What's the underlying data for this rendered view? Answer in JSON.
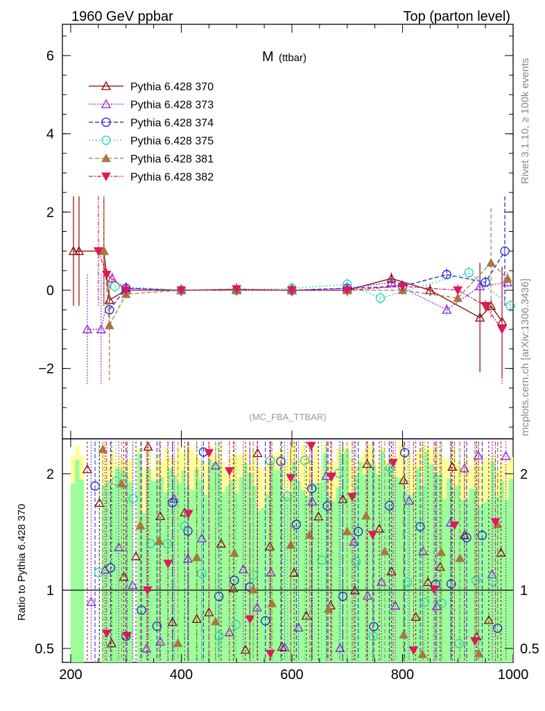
{
  "header": {
    "left": "1960 GeV ppbar",
    "right": "Top (parton level)"
  },
  "side_text": {
    "rivet": "Rivet 3.1.10, ≥ 100k events",
    "mcplots": "mcplots.cern.ch [arXiv:1306.3436]"
  },
  "chart_data": [
    {
      "type": "line",
      "title": "M",
      "title_sub": "(ttbar)",
      "analysis_label": "(MC_FBA_TTBAR)",
      "xlim": [
        185,
        1000
      ],
      "ylim": [
        -3.8,
        6.8
      ],
      "yticks": [
        6,
        4,
        2,
        0,
        -2
      ],
      "ytick_labels": [
        "6",
        "4",
        "2",
        "0",
        "−2"
      ],
      "legend_position": "top-left",
      "series": [
        {
          "name": "Pythia 6.428 370",
          "color": "#8b0000",
          "marker": "triangle-open",
          "dash": "",
          "x": [
            205,
            215,
            260,
            270,
            300,
            400,
            500,
            600,
            700,
            780,
            850,
            940,
            960,
            980
          ],
          "y": [
            1.0,
            1.0,
            1.0,
            -0.25,
            0.0,
            0.0,
            0.02,
            0.0,
            0.0,
            0.3,
            0.0,
            -0.7,
            -0.4,
            -0.8
          ]
        },
        {
          "name": "Pythia 6.428 373",
          "color": "#8e1fcf",
          "marker": "triangle-open",
          "dash": "2,2",
          "x": [
            230,
            255,
            275,
            300,
            400,
            500,
            600,
            700,
            780,
            880,
            940,
            990
          ],
          "y": [
            -1.0,
            -1.0,
            0.3,
            0.05,
            0.0,
            0.0,
            0.0,
            0.05,
            0.2,
            -0.5,
            0.1,
            0.2
          ]
        },
        {
          "name": "Pythia 6.428 374",
          "color": "#1b1bd3",
          "marker": "circle-open",
          "dash": "6,3",
          "x": [
            270,
            300,
            400,
            500,
            600,
            700,
            800,
            880,
            950,
            985
          ],
          "y": [
            -0.5,
            0.05,
            0.0,
            0.0,
            0.0,
            0.05,
            0.1,
            0.4,
            0.2,
            1.0
          ]
        },
        {
          "name": "Pythia 6.428 375",
          "color": "#1fd3b0",
          "marker": "circle-open",
          "dash": "2,3",
          "x": [
            280,
            400,
            500,
            600,
            700,
            760,
            920,
            995
          ],
          "y": [
            0.1,
            0.0,
            0.0,
            0.05,
            0.15,
            -0.2,
            0.45,
            -0.4
          ]
        },
        {
          "name": "Pythia 6.428 381",
          "color": "#a87840",
          "marker": "triangle-filled",
          "dash": "6,3",
          "x": [
            260,
            270,
            300,
            400,
            500,
            600,
            700,
            800,
            900,
            960,
            990
          ],
          "y": [
            1.0,
            -0.9,
            -0.1,
            0.0,
            0.0,
            0.0,
            0.0,
            0.0,
            -0.2,
            0.7,
            0.3
          ]
        },
        {
          "name": "Pythia 6.428 382",
          "color": "#e0185a",
          "marker": "triangle-down-filled",
          "dash": "6,2,2,2",
          "x": [
            250,
            265,
            300,
            400,
            500,
            600,
            700,
            800,
            900,
            950,
            980
          ],
          "y": [
            1.0,
            0.4,
            0.0,
            0.0,
            0.03,
            0.0,
            0.0,
            0.1,
            0.0,
            -0.4,
            -1.0
          ]
        }
      ]
    },
    {
      "type": "scatter",
      "ylabel": "Ratio to Pythia 6.428 370",
      "xlim": [
        185,
        1000
      ],
      "ylim": [
        0.38,
        2.3
      ],
      "yticks": [
        2,
        1,
        0.5
      ],
      "ytick_labels": [
        "2",
        "1",
        "0.5"
      ],
      "xticks": [
        200,
        400,
        600,
        800,
        1000
      ],
      "xtick_labels": [
        "200",
        "400",
        "600",
        "800",
        "1000"
      ],
      "reference_line": 1
    }
  ]
}
